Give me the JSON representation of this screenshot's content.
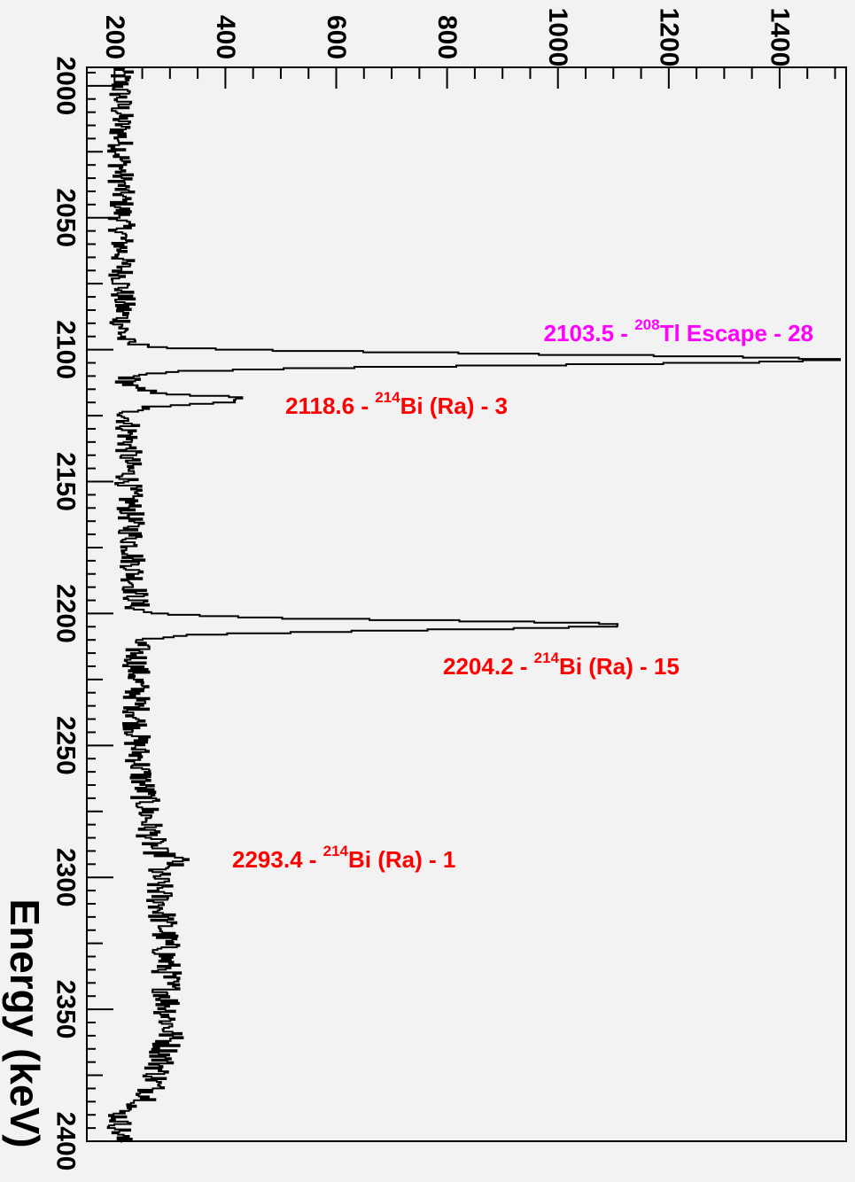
{
  "chart_data": {
    "type": "line",
    "orientation": "rotated-90",
    "title": "",
    "xlabel": "Energy (keV)",
    "ylabel": "",
    "xlim": [
      1993,
      2400
    ],
    "ylim": [
      150,
      1520
    ],
    "x_ticks": [
      2000,
      2050,
      2100,
      2150,
      2200,
      2250,
      2300,
      2350,
      2400
    ],
    "y_ticks": [
      200,
      400,
      600,
      800,
      1000,
      1200,
      1400
    ],
    "grid": false,
    "baseline": [
      {
        "x": 1993,
        "y": 210
      },
      {
        "x": 2100,
        "y": 215
      },
      {
        "x": 2110,
        "y": 225
      },
      {
        "x": 2150,
        "y": 225
      },
      {
        "x": 2200,
        "y": 240
      },
      {
        "x": 2250,
        "y": 240
      },
      {
        "x": 2290,
        "y": 270
      },
      {
        "x": 2320,
        "y": 290
      },
      {
        "x": 2360,
        "y": 300
      },
      {
        "x": 2385,
        "y": 260
      },
      {
        "x": 2388,
        "y": 210
      },
      {
        "x": 2400,
        "y": 210
      }
    ],
    "peaks": [
      {
        "energy": 2103.5,
        "height": 1490,
        "width": 2.0,
        "label": "2103.5 - ",
        "isotope_mass": "208",
        "label_rest": "Tl Escape - 28",
        "color": "#ff00ff"
      },
      {
        "energy": 2118.6,
        "height": 430,
        "width": 1.6,
        "label": "2118.6 - ",
        "isotope_mass": "214",
        "label_rest": "Bi (Ra) - 3",
        "color": "#ff0000"
      },
      {
        "energy": 2204.2,
        "height": 1120,
        "width": 1.8,
        "label": "2204.2 - ",
        "isotope_mass": "214",
        "label_rest": "Bi (Ra) - 15",
        "color": "#ff0000"
      },
      {
        "energy": 2293.4,
        "height": 315,
        "width": 1.6,
        "label": "2293.4 - ",
        "isotope_mass": "214",
        "label_rest": "Bi (Ra) - 1",
        "color": "#ff0000"
      }
    ]
  }
}
